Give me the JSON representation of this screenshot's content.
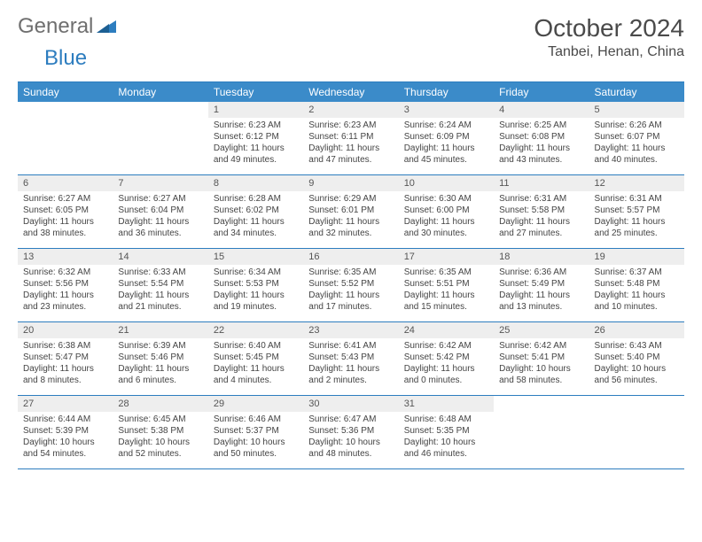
{
  "logo": {
    "word1": "General",
    "word2": "Blue"
  },
  "title": "October 2024",
  "location": "Tanbei, Henan, China",
  "day_headers": [
    "Sunday",
    "Monday",
    "Tuesday",
    "Wednesday",
    "Thursday",
    "Friday",
    "Saturday"
  ],
  "colors": {
    "header_bg": "#3b8bc9",
    "header_text": "#ffffff",
    "rule": "#2d7dbf",
    "daynum_bg": "#eeeeee",
    "body_text": "#444444",
    "logo_gray": "#6f6f6f",
    "logo_blue": "#2d7dbf"
  },
  "weeks": [
    [
      {
        "n": "",
        "sr": "",
        "ss": "",
        "dl": ""
      },
      {
        "n": "",
        "sr": "",
        "ss": "",
        "dl": ""
      },
      {
        "n": "1",
        "sr": "Sunrise: 6:23 AM",
        "ss": "Sunset: 6:12 PM",
        "dl": "Daylight: 11 hours and 49 minutes."
      },
      {
        "n": "2",
        "sr": "Sunrise: 6:23 AM",
        "ss": "Sunset: 6:11 PM",
        "dl": "Daylight: 11 hours and 47 minutes."
      },
      {
        "n": "3",
        "sr": "Sunrise: 6:24 AM",
        "ss": "Sunset: 6:09 PM",
        "dl": "Daylight: 11 hours and 45 minutes."
      },
      {
        "n": "4",
        "sr": "Sunrise: 6:25 AM",
        "ss": "Sunset: 6:08 PM",
        "dl": "Daylight: 11 hours and 43 minutes."
      },
      {
        "n": "5",
        "sr": "Sunrise: 6:26 AM",
        "ss": "Sunset: 6:07 PM",
        "dl": "Daylight: 11 hours and 40 minutes."
      }
    ],
    [
      {
        "n": "6",
        "sr": "Sunrise: 6:27 AM",
        "ss": "Sunset: 6:05 PM",
        "dl": "Daylight: 11 hours and 38 minutes."
      },
      {
        "n": "7",
        "sr": "Sunrise: 6:27 AM",
        "ss": "Sunset: 6:04 PM",
        "dl": "Daylight: 11 hours and 36 minutes."
      },
      {
        "n": "8",
        "sr": "Sunrise: 6:28 AM",
        "ss": "Sunset: 6:02 PM",
        "dl": "Daylight: 11 hours and 34 minutes."
      },
      {
        "n": "9",
        "sr": "Sunrise: 6:29 AM",
        "ss": "Sunset: 6:01 PM",
        "dl": "Daylight: 11 hours and 32 minutes."
      },
      {
        "n": "10",
        "sr": "Sunrise: 6:30 AM",
        "ss": "Sunset: 6:00 PM",
        "dl": "Daylight: 11 hours and 30 minutes."
      },
      {
        "n": "11",
        "sr": "Sunrise: 6:31 AM",
        "ss": "Sunset: 5:58 PM",
        "dl": "Daylight: 11 hours and 27 minutes."
      },
      {
        "n": "12",
        "sr": "Sunrise: 6:31 AM",
        "ss": "Sunset: 5:57 PM",
        "dl": "Daylight: 11 hours and 25 minutes."
      }
    ],
    [
      {
        "n": "13",
        "sr": "Sunrise: 6:32 AM",
        "ss": "Sunset: 5:56 PM",
        "dl": "Daylight: 11 hours and 23 minutes."
      },
      {
        "n": "14",
        "sr": "Sunrise: 6:33 AM",
        "ss": "Sunset: 5:54 PM",
        "dl": "Daylight: 11 hours and 21 minutes."
      },
      {
        "n": "15",
        "sr": "Sunrise: 6:34 AM",
        "ss": "Sunset: 5:53 PM",
        "dl": "Daylight: 11 hours and 19 minutes."
      },
      {
        "n": "16",
        "sr": "Sunrise: 6:35 AM",
        "ss": "Sunset: 5:52 PM",
        "dl": "Daylight: 11 hours and 17 minutes."
      },
      {
        "n": "17",
        "sr": "Sunrise: 6:35 AM",
        "ss": "Sunset: 5:51 PM",
        "dl": "Daylight: 11 hours and 15 minutes."
      },
      {
        "n": "18",
        "sr": "Sunrise: 6:36 AM",
        "ss": "Sunset: 5:49 PM",
        "dl": "Daylight: 11 hours and 13 minutes."
      },
      {
        "n": "19",
        "sr": "Sunrise: 6:37 AM",
        "ss": "Sunset: 5:48 PM",
        "dl": "Daylight: 11 hours and 10 minutes."
      }
    ],
    [
      {
        "n": "20",
        "sr": "Sunrise: 6:38 AM",
        "ss": "Sunset: 5:47 PM",
        "dl": "Daylight: 11 hours and 8 minutes."
      },
      {
        "n": "21",
        "sr": "Sunrise: 6:39 AM",
        "ss": "Sunset: 5:46 PM",
        "dl": "Daylight: 11 hours and 6 minutes."
      },
      {
        "n": "22",
        "sr": "Sunrise: 6:40 AM",
        "ss": "Sunset: 5:45 PM",
        "dl": "Daylight: 11 hours and 4 minutes."
      },
      {
        "n": "23",
        "sr": "Sunrise: 6:41 AM",
        "ss": "Sunset: 5:43 PM",
        "dl": "Daylight: 11 hours and 2 minutes."
      },
      {
        "n": "24",
        "sr": "Sunrise: 6:42 AM",
        "ss": "Sunset: 5:42 PM",
        "dl": "Daylight: 11 hours and 0 minutes."
      },
      {
        "n": "25",
        "sr": "Sunrise: 6:42 AM",
        "ss": "Sunset: 5:41 PM",
        "dl": "Daylight: 10 hours and 58 minutes."
      },
      {
        "n": "26",
        "sr": "Sunrise: 6:43 AM",
        "ss": "Sunset: 5:40 PM",
        "dl": "Daylight: 10 hours and 56 minutes."
      }
    ],
    [
      {
        "n": "27",
        "sr": "Sunrise: 6:44 AM",
        "ss": "Sunset: 5:39 PM",
        "dl": "Daylight: 10 hours and 54 minutes."
      },
      {
        "n": "28",
        "sr": "Sunrise: 6:45 AM",
        "ss": "Sunset: 5:38 PM",
        "dl": "Daylight: 10 hours and 52 minutes."
      },
      {
        "n": "29",
        "sr": "Sunrise: 6:46 AM",
        "ss": "Sunset: 5:37 PM",
        "dl": "Daylight: 10 hours and 50 minutes."
      },
      {
        "n": "30",
        "sr": "Sunrise: 6:47 AM",
        "ss": "Sunset: 5:36 PM",
        "dl": "Daylight: 10 hours and 48 minutes."
      },
      {
        "n": "31",
        "sr": "Sunrise: 6:48 AM",
        "ss": "Sunset: 5:35 PM",
        "dl": "Daylight: 10 hours and 46 minutes."
      },
      {
        "n": "",
        "sr": "",
        "ss": "",
        "dl": ""
      },
      {
        "n": "",
        "sr": "",
        "ss": "",
        "dl": ""
      }
    ]
  ]
}
